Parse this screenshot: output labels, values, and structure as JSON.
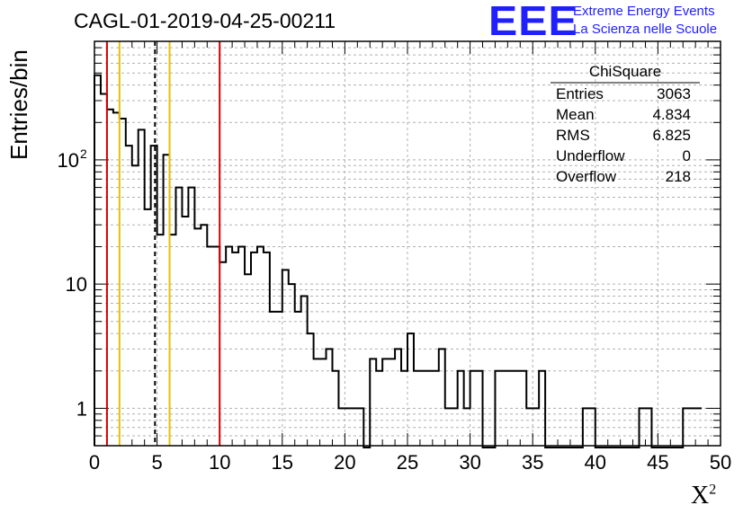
{
  "title": "CAGL-01-2019-04-25-00211",
  "logo": {
    "mark": "EEE",
    "line1": "Extreme Energy Events",
    "line2": "La Scienza nelle Scuole",
    "color": "#1f1fff"
  },
  "stats_box": {
    "name": "ChiSquare",
    "rows": [
      {
        "label": "Entries",
        "value": "3063"
      },
      {
        "label": "Mean",
        "value": "4.834"
      },
      {
        "label": "RMS",
        "value": "6.825"
      },
      {
        "label": "Underflow",
        "value": "0"
      },
      {
        "label": "Overflow",
        "value": "218"
      }
    ]
  },
  "chart_data": {
    "type": "histogram",
    "xlabel": "X",
    "xlabel_sup": "2",
    "ylabel": "Entries/bin",
    "xlim": [
      0,
      50
    ],
    "ylim": [
      0.5,
      900
    ],
    "ylog": true,
    "grid": true,
    "bin_width": 0.5,
    "x_ticks": [
      "0",
      "5",
      "10",
      "15",
      "20",
      "25",
      "30",
      "35",
      "40",
      "45",
      "50"
    ],
    "y_ticks": [
      {
        "value": 1,
        "label": "1"
      },
      {
        "value": 10,
        "label": "10"
      },
      {
        "value": 100,
        "label": "10",
        "sup": "2"
      }
    ],
    "counts": [
      480,
      340,
      255,
      240,
      215,
      130,
      90,
      175,
      40,
      130,
      25,
      110,
      25,
      60,
      35,
      60,
      28,
      30,
      20,
      20,
      15,
      20,
      18,
      20,
      12,
      18,
      20,
      18,
      6,
      6,
      13,
      10,
      6,
      8,
      4,
      2.5,
      2.5,
      3,
      2,
      1,
      1,
      1,
      1,
      0,
      2.5,
      2,
      2.5,
      2.5,
      3,
      2,
      4,
      2,
      2,
      2,
      2,
      3,
      1,
      1,
      2,
      1,
      2,
      2,
      0,
      0,
      2,
      2,
      2,
      2,
      2,
      1,
      1,
      2,
      0,
      0,
      0,
      0,
      0,
      0,
      1,
      1,
      0,
      0,
      0,
      0,
      0,
      0,
      0,
      1,
      1,
      0,
      0,
      0,
      0,
      0,
      1,
      1,
      1
    ],
    "vertical_lines": [
      {
        "x": 1,
        "color": "#d40000",
        "style": "solid"
      },
      {
        "x": 2,
        "color": "#e8c000",
        "style": "solid"
      },
      {
        "x": 4.834,
        "color": "#000000",
        "style": "dashed"
      },
      {
        "x": 6,
        "color": "#e8c000",
        "style": "solid"
      },
      {
        "x": 10,
        "color": "#d40000",
        "style": "solid"
      }
    ]
  }
}
